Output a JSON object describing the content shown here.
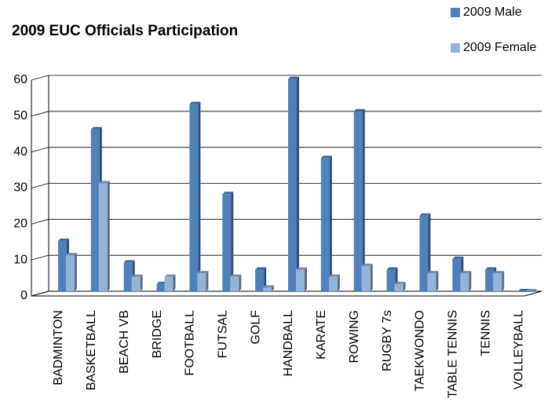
{
  "chart_data": {
    "type": "bar",
    "title": "2009 EUC Officials Participation",
    "categories": [
      "BADMINTON",
      "BASKETBALL",
      "BEACH VB",
      "BRIDGE",
      "FOOTBALL",
      "FUTSAL",
      "GOLF",
      "HANDBALL",
      "KARATE",
      "ROWING",
      "RUGBY 7s",
      "TAEKWONDO",
      "TABLE TENNIS",
      "TENNIS",
      "VOLLEYBALL"
    ],
    "series": [
      {
        "name": "2009 Male",
        "color": "#4f81bd",
        "values": [
          14,
          45,
          8,
          2,
          52,
          27,
          6,
          59,
          37,
          50,
          6,
          21,
          9,
          6,
          0
        ]
      },
      {
        "name": "2009 Female",
        "color": "#95b3d7",
        "values": [
          10,
          30,
          4,
          4,
          5,
          4,
          1,
          6,
          4,
          7,
          2,
          5,
          5,
          5,
          0
        ]
      }
    ],
    "ylim": [
      0,
      60
    ],
    "yticks": [
      0,
      10,
      20,
      30,
      40,
      50,
      60
    ],
    "grid": true,
    "legend": "top-right"
  }
}
